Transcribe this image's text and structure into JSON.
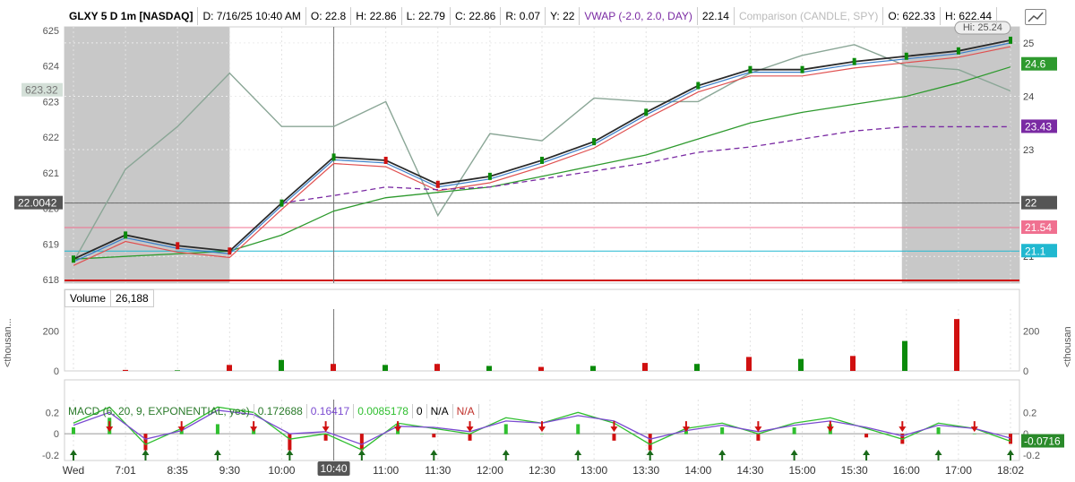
{
  "header": {
    "symbol": "GLXY 5 D 1m [NASDAQ]",
    "date": "D: 7/16/25 10:40 AM",
    "open": "O: 22.8",
    "high": "H: 22.86",
    "low": "L: 22.79",
    "close": "C: 22.86",
    "range": "R: 0.07",
    "y": "Y: 22",
    "vwap_label": "VWAP (-2.0, 2.0, DAY)",
    "vwap_value": "22.14",
    "comparison": "Comparison (CANDLE, SPY)",
    "cmp_open": "O: 622.33",
    "cmp_high": "H: 622.44"
  },
  "volume_header": {
    "label": "Volume",
    "value": "26,188"
  },
  "macd_header": {
    "label": "MACD (6, 20, 9, EXPONENTIAL, yes)",
    "value": "0.172688",
    "avg": "0.16417",
    "diff": "0.0085178",
    "zero": "0",
    "na1": "N/A",
    "na2": "N/A"
  },
  "side_labels": {
    "left": "<thousan...",
    "right": "<thousan"
  },
  "crosshair_time": "10:40",
  "colors": {
    "price": "#2a2a2a",
    "up": "#0a8a0a",
    "down": "#d01010",
    "ema_fast": "#3a7ec8",
    "ema_slow": "#e05050",
    "sma_long": "#2e9a2e",
    "vwap": "#7a2aa3",
    "spy": "#8aa696",
    "hline_pink": "#f07090",
    "hline_cyan": "#20b8d0",
    "macd": "#2fbf2f",
    "macd_avg": "#7a4ad0",
    "extended_bg": "#c8c8c8"
  },
  "chart_data": {
    "type": "candlestick",
    "x_tick_labels": [
      "Wed",
      "7:01",
      "8:35",
      "9:30",
      "10:00",
      "10:",
      "11:00",
      "11:30",
      "12:00",
      "12:30",
      "13:00",
      "13:30",
      "14:00",
      "14:30",
      "15:00",
      "15:30",
      "16:00",
      "17:00",
      "18:02"
    ],
    "price_axis_right": {
      "ticks": [
        21,
        22,
        23,
        24,
        25
      ],
      "ylim": [
        20.5,
        25.3
      ]
    },
    "spy_axis_left": {
      "ticks": [
        618,
        619,
        620,
        621,
        622,
        623,
        624,
        625
      ],
      "ylim": [
        617.9,
        625.1
      ]
    },
    "price_series": {
      "name": "GLXY",
      "time": [
        "Wed",
        "7:01",
        "8:35",
        "9:30",
        "10:00",
        "10:40",
        "11:00",
        "11:30",
        "12:00",
        "12:30",
        "13:00",
        "13:30",
        "14:00",
        "14:30",
        "15:00",
        "15:30",
        "16:00",
        "17:00",
        "18:02"
      ],
      "close": [
        20.95,
        21.4,
        21.2,
        21.1,
        22.0,
        22.86,
        22.8,
        22.35,
        22.5,
        22.8,
        23.15,
        23.7,
        24.2,
        24.5,
        24.5,
        24.65,
        24.75,
        24.85,
        25.05
      ]
    },
    "spy_series": {
      "name": "SPY",
      "close": [
        618.5,
        621.1,
        622.3,
        623.8,
        622.3,
        622.3,
        623.0,
        619.8,
        622.1,
        621.9,
        623.1,
        623.0,
        623.0,
        623.8,
        624.3,
        624.6,
        624.0,
        623.9,
        623.3
      ]
    },
    "sma_long": [
      20.95,
      21.0,
      21.05,
      21.1,
      21.4,
      21.85,
      22.1,
      22.2,
      22.3,
      22.5,
      22.7,
      22.9,
      23.2,
      23.5,
      23.7,
      23.85,
      24.0,
      24.25,
      24.55
    ],
    "vwap": [
      null,
      null,
      null,
      null,
      22.0,
      22.14,
      22.3,
      22.25,
      22.3,
      22.45,
      22.6,
      22.75,
      22.95,
      23.05,
      23.2,
      23.35,
      23.43,
      23.43,
      23.43
    ],
    "price_labels": [
      {
        "value": 24.6,
        "text": "24.6",
        "color": "#2e9a2e"
      },
      {
        "value": 23.43,
        "text": "23.43",
        "color": "#7a2aa3"
      },
      {
        "value": 22.0,
        "text": "22",
        "color": "#555555"
      },
      {
        "value": 21.54,
        "text": "21.54",
        "color": "#f07090"
      },
      {
        "value": 21.1,
        "text": "21.1",
        "color": "#20b8d0"
      }
    ],
    "spy_label": "623.32",
    "crosshair_price_label": "22.0042",
    "hi_label": "Hi: 25.24",
    "horizontal_lines": [
      22.0,
      21.54,
      21.1
    ],
    "volume": {
      "ticks": [
        0,
        200
      ],
      "ylim": [
        0,
        310
      ],
      "values": [
        0,
        5,
        3,
        30,
        55,
        35,
        30,
        35,
        25,
        20,
        25,
        40,
        35,
        70,
        60,
        75,
        150,
        260
      ]
    },
    "macd": {
      "ticks": [
        -0.2,
        0,
        0.2
      ],
      "ylim": [
        -0.25,
        0.32
      ],
      "value_label": "-0.0716",
      "macd_line": [
        0.1,
        0.25,
        -0.1,
        0.05,
        0.25,
        0.2,
        -0.05,
        0.0,
        -0.15,
        0.1,
        0.05,
        0.0,
        0.15,
        0.1,
        0.2,
        0.1,
        -0.1,
        0.05,
        0.1,
        0.0,
        0.1,
        0.15,
        0.05,
        -0.05,
        0.1,
        0.05,
        -0.07
      ],
      "macd_avg": [
        0.08,
        0.2,
        -0.05,
        0.03,
        0.22,
        0.18,
        0.0,
        0.02,
        -0.1,
        0.07,
        0.06,
        0.02,
        0.12,
        0.1,
        0.17,
        0.12,
        -0.05,
        0.03,
        0.08,
        0.02,
        0.08,
        0.12,
        0.06,
        -0.02,
        0.08,
        0.05,
        -0.04
      ]
    }
  }
}
